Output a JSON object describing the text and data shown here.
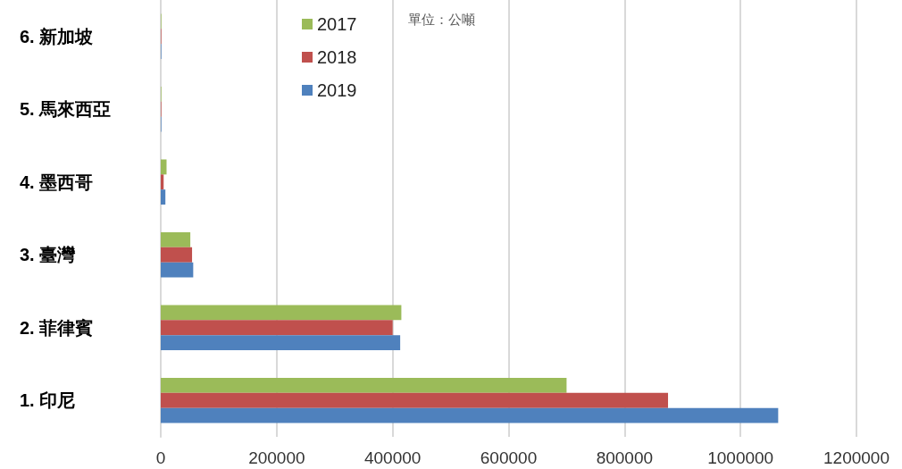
{
  "chart_data": {
    "type": "bar",
    "orientation": "horizontal",
    "categories": [
      "6. 新加坡",
      "5. 馬來西亞",
      "4. 墨西哥",
      "3. 臺灣",
      "2. 菲律賓",
      "1. 印尼"
    ],
    "series": [
      {
        "name": "2017",
        "color": "#9bbb59",
        "values": [
          1000,
          1000,
          10000,
          51000,
          415000,
          700000
        ]
      },
      {
        "name": "2018",
        "color": "#c0504d",
        "values": [
          1000,
          1000,
          5000,
          54000,
          400000,
          875000
        ]
      },
      {
        "name": "2019",
        "color": "#4f81bd",
        "values": [
          1000,
          1000,
          8000,
          56000,
          413000,
          1065000
        ]
      }
    ],
    "xlim": [
      0,
      1200000
    ],
    "xticks": [
      0,
      200000,
      400000,
      600000,
      800000,
      1000000,
      1200000
    ],
    "grid": "x",
    "legend": "top",
    "annotations": [
      "單位：公噸"
    ]
  }
}
